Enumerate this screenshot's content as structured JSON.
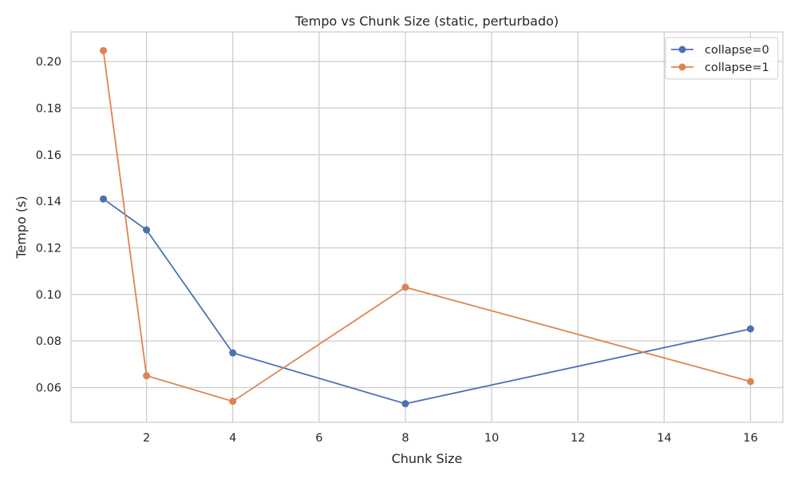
{
  "chart_data": {
    "type": "line",
    "title": "Tempo vs Chunk Size (static, perturbado)",
    "xlabel": "Chunk Size",
    "ylabel": "Tempo (s)",
    "x": [
      1,
      2,
      4,
      8,
      16
    ],
    "series": [
      {
        "name": "collapse=0",
        "color": "#4c72b0",
        "values": [
          0.141,
          0.1277,
          0.0749,
          0.0531,
          0.0852
        ]
      },
      {
        "name": "collapse=1",
        "color": "#dd8452",
        "values": [
          0.2047,
          0.0651,
          0.0541,
          0.1031,
          0.0626
        ]
      }
    ],
    "xlim": [
      0.25,
      16.75
    ],
    "ylim": [
      0.0451,
      0.2127
    ],
    "xticks": [
      2,
      4,
      6,
      8,
      10,
      12,
      14,
      16
    ],
    "yticks": [
      0.06,
      0.08,
      0.1,
      0.12,
      0.14,
      0.16,
      0.18,
      0.2
    ],
    "ytick_labels": [
      "0.06",
      "0.08",
      "0.10",
      "0.12",
      "0.14",
      "0.16",
      "0.18",
      "0.20"
    ],
    "grid": true,
    "legend_position": "top-right"
  }
}
